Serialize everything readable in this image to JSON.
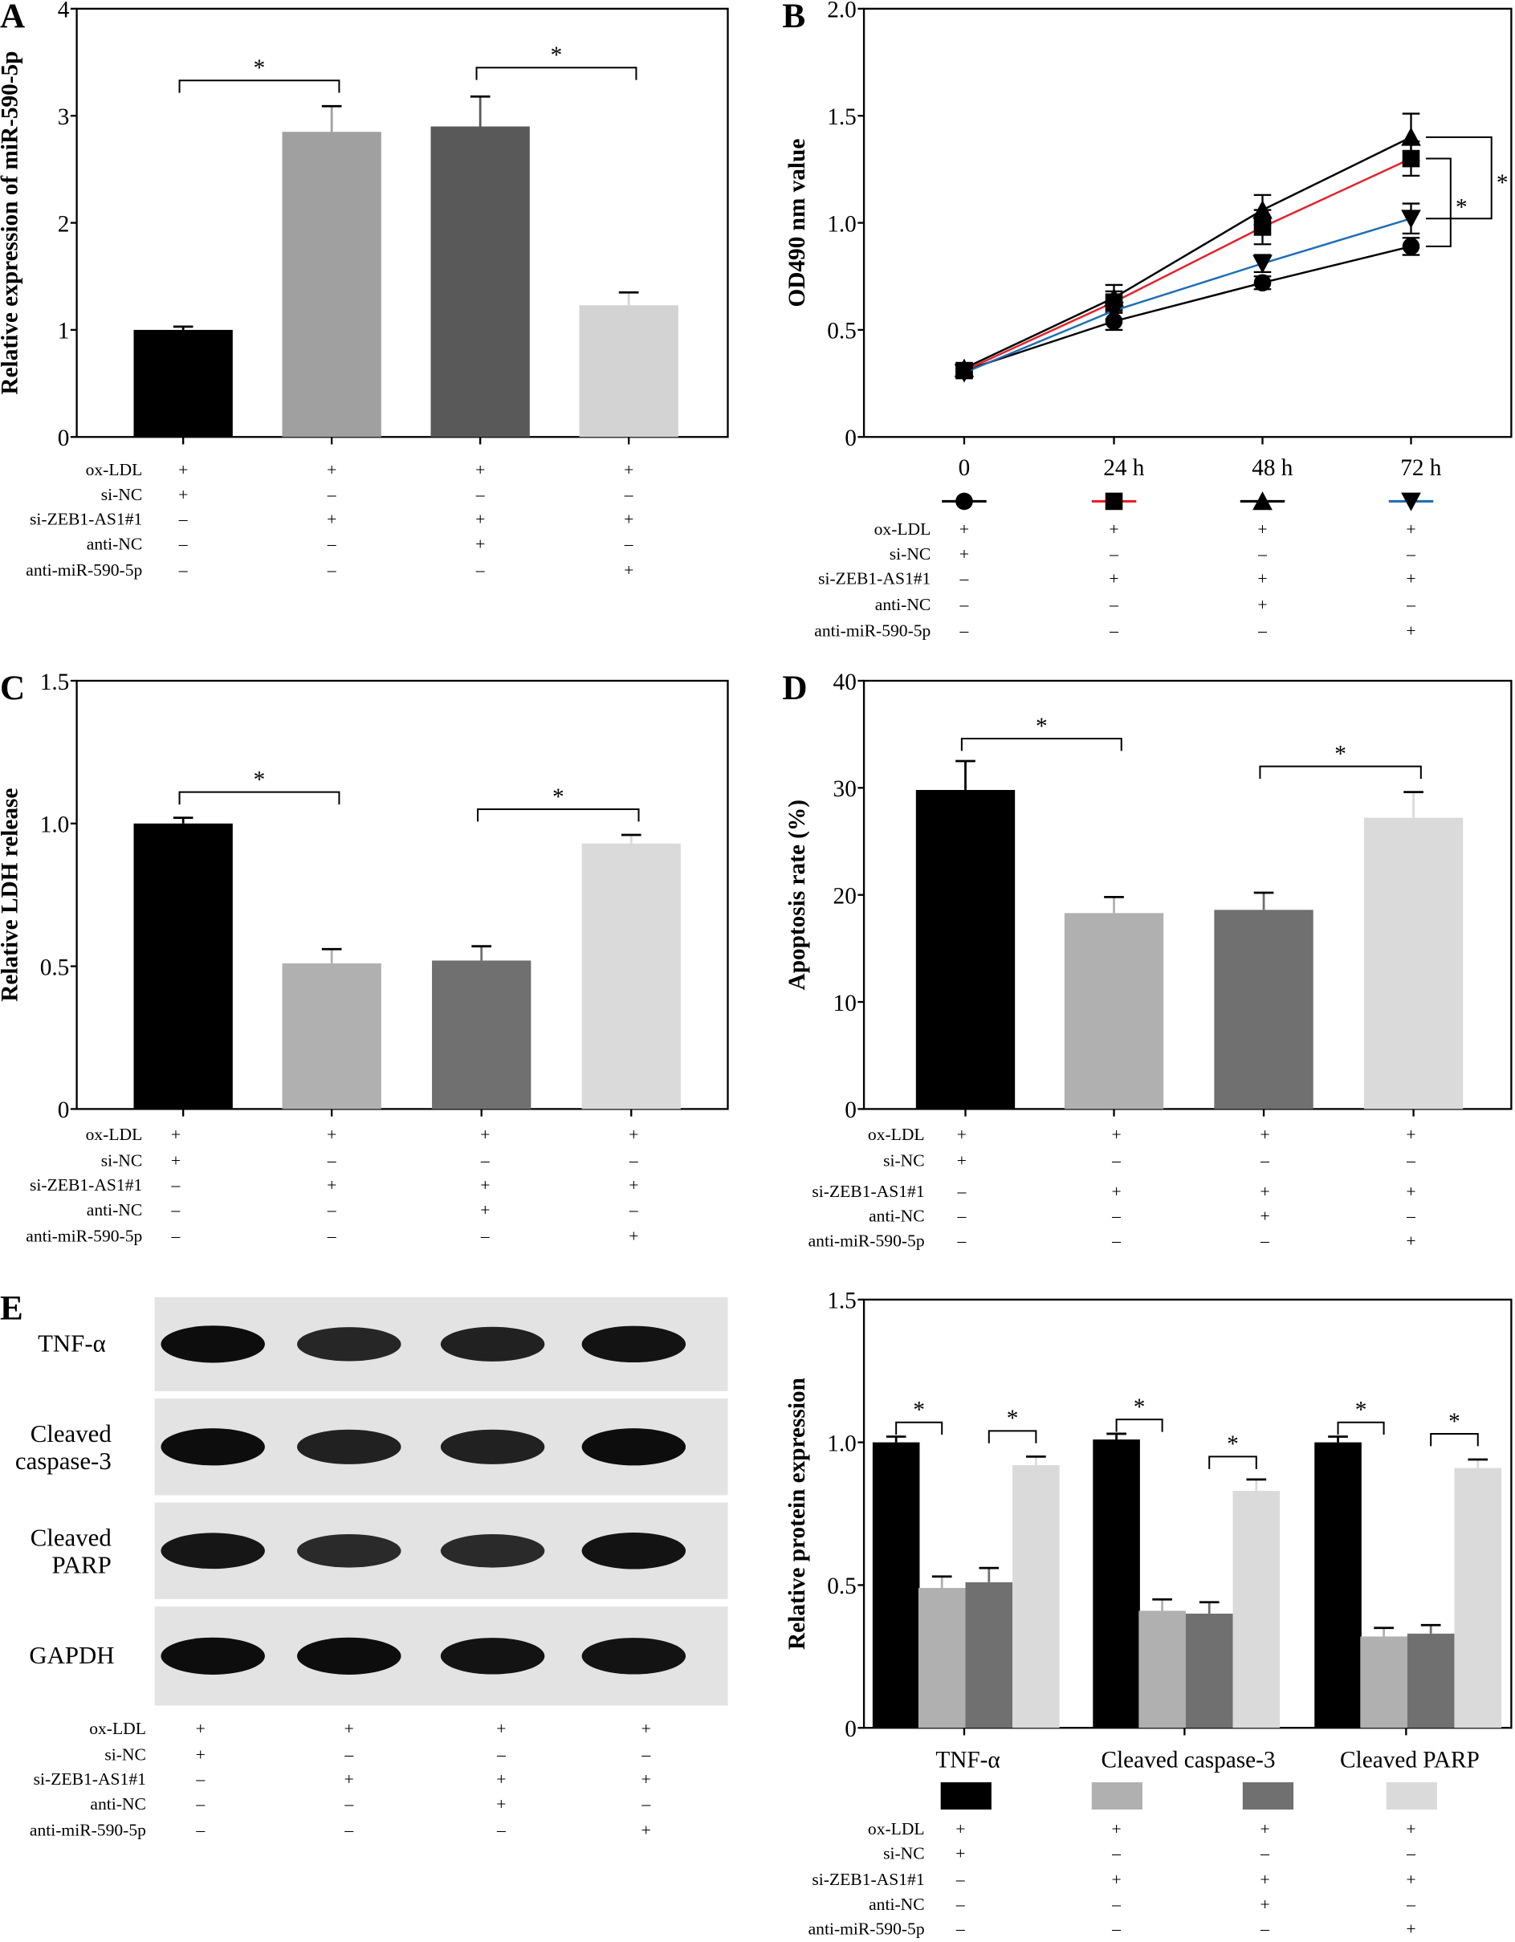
{
  "figure_labels": [
    "A",
    "B",
    "C",
    "D",
    "E"
  ],
  "condition_labels": [
    "ox-LDL",
    "si-NC",
    "si-ZEB1-AS1#1",
    "anti-NC",
    "anti-miR-590-5p"
  ],
  "condition_matrix": [
    [
      "+",
      "+",
      "+",
      "+"
    ],
    [
      "+",
      "–",
      "–",
      "–"
    ],
    [
      "–",
      "+",
      "+",
      "+"
    ],
    [
      "–",
      "–",
      "+",
      "–"
    ],
    [
      "–",
      "–",
      "–",
      "+"
    ]
  ],
  "blot": {
    "rows": [
      "TNF-α",
      "Cleaved caspase-3",
      "Cleaved PARP",
      "GAPDH"
    ],
    "band_intensity": [
      [
        1.0,
        0.75,
        0.8,
        0.95
      ],
      [
        1.0,
        0.8,
        0.8,
        1.0
      ],
      [
        0.9,
        0.7,
        0.7,
        0.95
      ],
      [
        1.0,
        1.0,
        0.95,
        0.95
      ]
    ]
  },
  "chart_data": [
    {
      "panel": "A",
      "type": "bar",
      "ylabel": "Relative expression of miR-590-5p",
      "ylim": [
        0,
        4
      ],
      "yticks": [
        "0",
        "1",
        "2",
        "3",
        "4"
      ],
      "values": [
        1.0,
        2.85,
        2.9,
        1.23
      ],
      "errors": [
        0.03,
        0.24,
        0.28,
        0.12
      ],
      "colors": [
        "#000000",
        "#a0a0a0",
        "#595959",
        "#d3d3d3"
      ],
      "significance": [
        {
          "from": 0,
          "to": 1,
          "y": 3.33,
          "label": "*"
        },
        {
          "from": 2,
          "to": 3,
          "y": 3.45,
          "label": "*"
        }
      ]
    },
    {
      "panel": "B",
      "type": "line",
      "ylabel": "OD490 nm value",
      "ylim": [
        0,
        2.0
      ],
      "yticks": [
        "0",
        "0.5",
        "1.0",
        "1.5",
        "2.0"
      ],
      "x": [
        "0",
        "24 h",
        "48 h",
        "72 h"
      ],
      "series": [
        {
          "marker": "circle",
          "color": "#000000",
          "values": [
            0.31,
            0.54,
            0.72,
            0.89
          ],
          "errors": [
            0.02,
            0.04,
            0.03,
            0.04
          ]
        },
        {
          "marker": "square",
          "color": "#e8202a",
          "values": [
            0.31,
            0.63,
            0.98,
            1.3
          ],
          "errors": [
            0.02,
            0.05,
            0.08,
            0.08
          ]
        },
        {
          "marker": "triangle",
          "color": "#000000",
          "values": [
            0.32,
            0.65,
            1.06,
            1.4
          ],
          "errors": [
            0.02,
            0.06,
            0.07,
            0.11
          ]
        },
        {
          "marker": "triangle-down",
          "color": "#1f6fb5",
          "values": [
            0.3,
            0.59,
            0.81,
            1.02
          ],
          "errors": [
            0.02,
            0.04,
            0.04,
            0.07
          ]
        }
      ],
      "significance": [
        {
          "from_value": 1.4,
          "to_value": 1.02,
          "label": "*"
        },
        {
          "from_value": 1.3,
          "to_value": 0.89,
          "label": "*"
        }
      ]
    },
    {
      "panel": "C",
      "type": "bar",
      "ylabel": "Relative LDH release",
      "ylim": [
        0,
        1.5
      ],
      "yticks": [
        "0",
        "0.5",
        "1.0",
        "1.5"
      ],
      "values": [
        1.0,
        0.51,
        0.52,
        0.93
      ],
      "errors": [
        0.02,
        0.05,
        0.05,
        0.03
      ],
      "colors": [
        "#000000",
        "#b0b0b0",
        "#707070",
        "#dadada"
      ],
      "significance": [
        {
          "from": 0,
          "to": 1,
          "y": 1.11,
          "label": "*"
        },
        {
          "from": 2,
          "to": 3,
          "y": 1.05,
          "label": "*"
        }
      ]
    },
    {
      "panel": "D",
      "type": "bar",
      "ylabel": "Apoptosis rate (%)",
      "ylim": [
        0,
        40
      ],
      "yticks": [
        "0",
        "10",
        "20",
        "30",
        "40"
      ],
      "values": [
        29.8,
        18.3,
        18.6,
        27.2
      ],
      "errors": [
        2.7,
        1.5,
        1.6,
        2.4
      ],
      "colors": [
        "#000000",
        "#b0b0b0",
        "#707070",
        "#dadada"
      ],
      "significance": [
        {
          "from": 0,
          "to": 1,
          "y": 34.6,
          "label": "*"
        },
        {
          "from": 2,
          "to": 3,
          "y": 32.0,
          "label": "*"
        }
      ]
    },
    {
      "panel": "E",
      "type": "bar",
      "ylabel": "Relative protein expression",
      "ylim": [
        0,
        1.5
      ],
      "yticks": [
        "0",
        "0.5",
        "1.0",
        "1.5"
      ],
      "categories": [
        "TNF-α",
        "Cleaved caspase-3",
        "Cleaved PARP"
      ],
      "colors": [
        "#000000",
        "#b0b0b0",
        "#707070",
        "#dadada"
      ],
      "values": [
        [
          1.0,
          0.49,
          0.51,
          0.92
        ],
        [
          1.01,
          0.41,
          0.4,
          0.83
        ],
        [
          1.0,
          0.32,
          0.33,
          0.91
        ]
      ],
      "errors": [
        [
          0.02,
          0.04,
          0.05,
          0.03
        ],
        [
          0.02,
          0.04,
          0.04,
          0.04
        ],
        [
          0.02,
          0.03,
          0.03,
          0.03
        ]
      ],
      "significance": [
        [
          {
            "from": 0,
            "to": 1,
            "y": 1.07
          },
          {
            "from": 2,
            "to": 3,
            "y": 1.04
          }
        ],
        [
          {
            "from": 0,
            "to": 1,
            "y": 1.08
          },
          {
            "from": 2,
            "to": 3,
            "y": 0.95
          }
        ],
        [
          {
            "from": 0,
            "to": 1,
            "y": 1.07
          },
          {
            "from": 2,
            "to": 3,
            "y": 1.03
          }
        ]
      ],
      "sig_label": "*"
    }
  ]
}
